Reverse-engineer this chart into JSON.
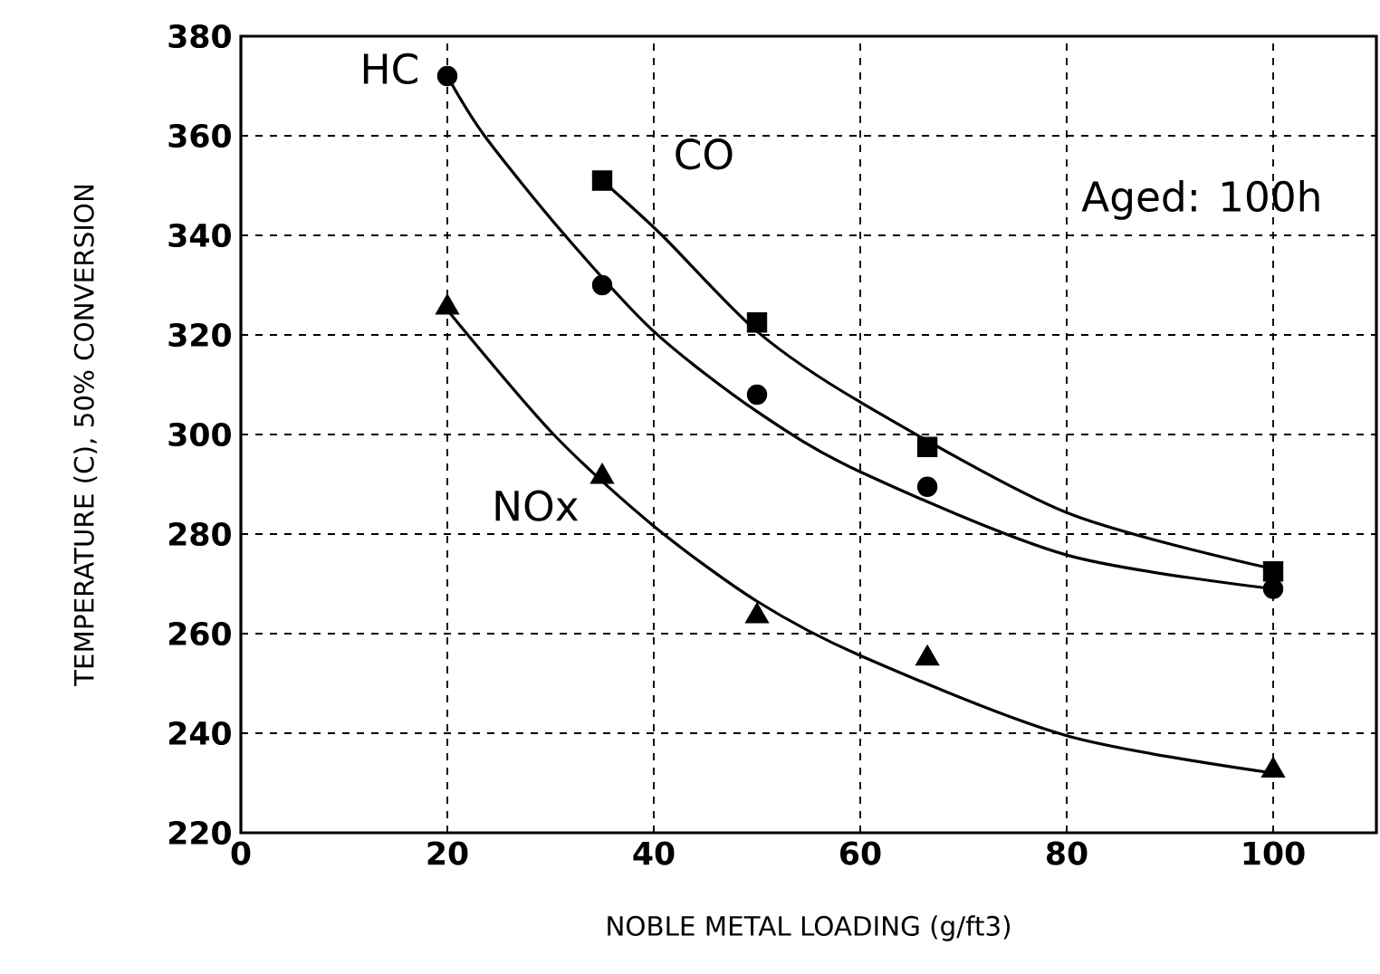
{
  "chart_data": {
    "type": "scatter",
    "xlabel": "NOBLE METAL LOADING (g/ft3)",
    "ylabel": "TEMPERATURE (C), 50% CONVERSION",
    "xlim": [
      0,
      110
    ],
    "xticks": [
      0,
      20,
      40,
      60,
      80,
      100
    ],
    "ylim": [
      220,
      380
    ],
    "yticks": [
      220,
      240,
      260,
      280,
      300,
      320,
      340,
      360,
      380
    ],
    "grid": true,
    "annotations": [
      "Aged: 100h"
    ],
    "series": [
      {
        "name": "HC",
        "color": "#000000",
        "marker": "circle",
        "x": [
          20,
          35,
          50,
          66.5,
          100
        ],
        "values": [
          372,
          330,
          308,
          289.5,
          269
        ]
      },
      {
        "name": "CO",
        "color": "#000000",
        "marker": "square",
        "x": [
          35,
          50,
          66.5,
          100
        ],
        "values": [
          351,
          322.5,
          297.5,
          272.5
        ]
      },
      {
        "name": "NOx",
        "color": "#000000",
        "marker": "triangle",
        "x": [
          20,
          35,
          50,
          66.5,
          100
        ],
        "values": [
          325.5,
          291.5,
          263.5,
          255,
          232.5
        ]
      },
      {
        "type": "line",
        "color": "#000000",
        "marker": "none",
        "line_style": "solid",
        "x": [
          20,
          23.6,
          31.4,
          40,
          50,
          60,
          80,
          100
        ],
        "values": [
          372,
          360,
          340,
          320.7,
          304.6,
          292.5,
          275.8,
          269
        ]
      },
      {
        "type": "line",
        "color": "#000000",
        "marker": "none",
        "line_style": "solid",
        "x": [
          35,
          40.8,
          50,
          60,
          80,
          100
        ],
        "values": [
          351,
          340,
          320.7,
          306.5,
          284.3,
          273
        ]
      },
      {
        "type": "line",
        "color": "#000000",
        "marker": "none",
        "line_style": "solid",
        "x": [
          20,
          30.3,
          40,
          50,
          60,
          80,
          100
        ],
        "values": [
          325,
          300,
          281.6,
          266.5,
          255.6,
          239.5,
          232
        ]
      }
    ]
  }
}
